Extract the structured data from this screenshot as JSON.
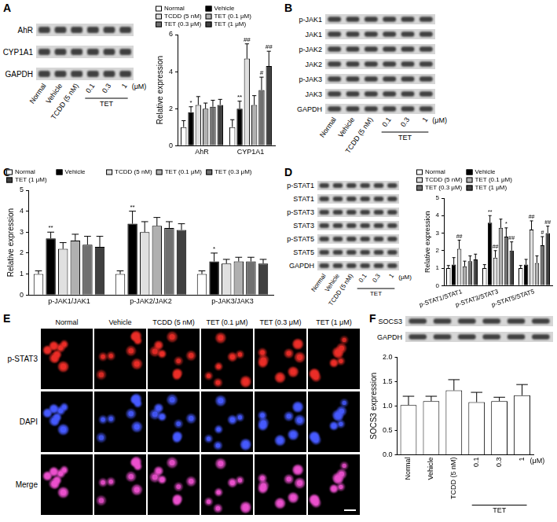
{
  "panel_labels": [
    "A",
    "B",
    "C",
    "D",
    "E",
    "F"
  ],
  "treatments": {
    "lanes": [
      "Normal",
      "Vehicle",
      "TCDD (5 nM)",
      "0.1",
      "0.3",
      "1"
    ],
    "group": {
      "label": "TET",
      "members": [
        "0.1",
        "0.3",
        "1"
      ],
      "unit": "(μM)"
    }
  },
  "blots": {
    "A": [
      "AhR",
      "CYP1A1",
      "GAPDH"
    ],
    "B": [
      "p-JAK1",
      "JAK1",
      "p-JAK2",
      "JAK2",
      "p-JAK3",
      "JAK3",
      "GAPDH"
    ],
    "D": [
      "p-STAT1",
      "STAT1",
      "p-STAT3",
      "STAT3",
      "p-STAT5",
      "STAT5",
      "GAPDH"
    ],
    "F": [
      "SOCS3",
      "GAPDH"
    ]
  },
  "images": {
    "rows": [
      "p-STAT3",
      "DAPI",
      "Merge"
    ],
    "columns": [
      "Normal",
      "Vehicle",
      "TCDD (5 nM)",
      "TET (0.1 μM)",
      "TET (0.3 μM)",
      "TET (1 μM)"
    ]
  },
  "chart_data": [
    {
      "type": "bar",
      "y_label": "Relative expression",
      "categories": [
        "AhR",
        "CYP1A1"
      ],
      "series": [
        {
          "name": "Normal",
          "color": "#ffffff",
          "values": [
            1,
            1
          ],
          "errors": [
            0.35,
            0.4
          ],
          "marks": [
            null,
            null
          ]
        },
        {
          "name": "Vehicle",
          "color": "#000000",
          "values": [
            1.8,
            2.0
          ],
          "errors": [
            0.3,
            0.4
          ],
          "marks": [
            "*",
            "**"
          ]
        },
        {
          "name": "TCDD (5 nM)",
          "color": "#e0e0e0",
          "values": [
            2.2,
            4.7
          ],
          "errors": [
            0.45,
            0.8
          ],
          "marks": [
            null,
            "##"
          ]
        },
        {
          "name": "TET (0.1 μM)",
          "color": "#b0b0b0",
          "values": [
            2.0,
            2.2
          ],
          "errors": [
            0.3,
            0.5
          ],
          "marks": [
            null,
            null
          ]
        },
        {
          "name": "TET (0.3 μM)",
          "color": "#707070",
          "values": [
            2.1,
            3.0
          ],
          "errors": [
            0.35,
            0.7
          ],
          "marks": [
            null,
            "#"
          ]
        },
        {
          "name": "TET (1 μM)",
          "color": "#404040",
          "values": [
            2.2,
            4.3
          ],
          "errors": [
            0.3,
            0.8
          ],
          "marks": [
            null,
            "##"
          ]
        }
      ],
      "ylim": [
        0,
        6
      ],
      "yticks": [
        0,
        2,
        4,
        6
      ],
      "grid": false,
      "legend": "top-left"
    },
    {
      "type": "bar",
      "y_label": "Relative expression",
      "categories": [
        "p-JAK1/JAK1",
        "p-JAK2/JAK2",
        "p-JAK3/JAK3"
      ],
      "series": [
        {
          "name": "Normal",
          "color": "#ffffff",
          "values": [
            1,
            1,
            1
          ],
          "errors": [
            0.15,
            0.15,
            0.15
          ],
          "marks": [
            null,
            null,
            null
          ]
        },
        {
          "name": "Vehicle",
          "color": "#000000",
          "values": [
            2.7,
            3.4,
            1.6
          ],
          "errors": [
            0.3,
            0.6,
            0.4
          ],
          "marks": [
            "**",
            "**",
            "*"
          ]
        },
        {
          "name": "TCDD (5 nM)",
          "color": "#e0e0e0",
          "values": [
            2.2,
            3.0,
            1.5
          ],
          "errors": [
            0.3,
            0.5,
            0.2
          ],
          "marks": [
            null,
            null,
            null
          ]
        },
        {
          "name": "TET (0.1 μM)",
          "color": "#b0b0b0",
          "values": [
            2.6,
            3.3,
            1.6
          ],
          "errors": [
            0.3,
            0.4,
            0.2
          ],
          "marks": [
            null,
            null,
            null
          ]
        },
        {
          "name": "TET (0.3 μM)",
          "color": "#707070",
          "values": [
            2.4,
            3.2,
            1.6
          ],
          "errors": [
            0.4,
            0.3,
            0.2
          ],
          "marks": [
            null,
            null,
            null
          ]
        },
        {
          "name": "TET (1 μM)",
          "color": "#404040",
          "values": [
            2.3,
            3.1,
            1.5
          ],
          "errors": [
            0.5,
            0.3,
            0.2
          ],
          "marks": [
            null,
            null,
            null
          ]
        }
      ],
      "ylim": [
        0,
        5
      ],
      "yticks": [
        0,
        1,
        2,
        3,
        4,
        5
      ],
      "grid": false,
      "legend": "top-left"
    },
    {
      "type": "bar",
      "y_label": "Relative expression",
      "categories": [
        "p-STAT1/STAT1",
        "p-STAT3/STAT3",
        "p-STAT5/STAT5"
      ],
      "series": [
        {
          "name": "Normal",
          "color": "#ffffff",
          "values": [
            1,
            1,
            1
          ],
          "errors": [
            0.15,
            0.2,
            0.15
          ],
          "marks": [
            null,
            null,
            null
          ]
        },
        {
          "name": "Vehicle",
          "color": "#000000",
          "values": [
            1.2,
            3.6,
            1.2
          ],
          "errors": [
            0.4,
            0.4,
            0.3
          ],
          "marks": [
            null,
            "**",
            null
          ]
        },
        {
          "name": "TCDD (5 nM)",
          "color": "#e0e0e0",
          "values": [
            2.1,
            1.6,
            3.2
          ],
          "errors": [
            0.5,
            0.4,
            0.5
          ],
          "marks": [
            "##",
            "##",
            "##"
          ]
        },
        {
          "name": "TET (0.1 μM)",
          "color": "#b0b0b0",
          "values": [
            1.1,
            3.3,
            1.3
          ],
          "errors": [
            0.3,
            0.5,
            0.4
          ],
          "marks": [
            null,
            null,
            null
          ]
        },
        {
          "name": "TET (0.3 μM)",
          "color": "#707070",
          "values": [
            1.4,
            2.8,
            2.3
          ],
          "errors": [
            0.3,
            0.5,
            0.5
          ],
          "marks": [
            null,
            "*",
            "#"
          ]
        },
        {
          "name": "TET (1 μM)",
          "color": "#404040",
          "values": [
            1.5,
            2.0,
            3.0
          ],
          "errors": [
            0.3,
            0.5,
            0.4
          ],
          "marks": [
            null,
            "##",
            "##"
          ]
        }
      ],
      "ylim": [
        0,
        5
      ],
      "yticks": [
        0,
        1,
        2,
        3,
        4,
        5
      ],
      "grid": false,
      "legend": "top-left"
    },
    {
      "type": "bar",
      "y_label": "SOCS3 expression",
      "categories": [
        "Normal",
        "Vehicle",
        "TCDD (5 nM)",
        "0.1",
        "0.3",
        "1"
      ],
      "group": {
        "label": "TET",
        "members": [
          "0.1",
          "0.3",
          "1"
        ],
        "unit": "(μM)"
      },
      "color": "#ffffff",
      "values": [
        1.02,
        1.1,
        1.32,
        1.08,
        1.1,
        1.22
      ],
      "errors": [
        0.18,
        0.1,
        0.22,
        0.2,
        0.08,
        0.22
      ],
      "ylim": [
        0,
        2
      ],
      "yticks": [
        {
          "value": 0,
          "label": "0.0"
        },
        0.5,
        {
          "value": 1,
          "label": "1.0"
        },
        1.5,
        {
          "value": 2,
          "label": "2.0"
        }
      ],
      "grid": false
    }
  ]
}
